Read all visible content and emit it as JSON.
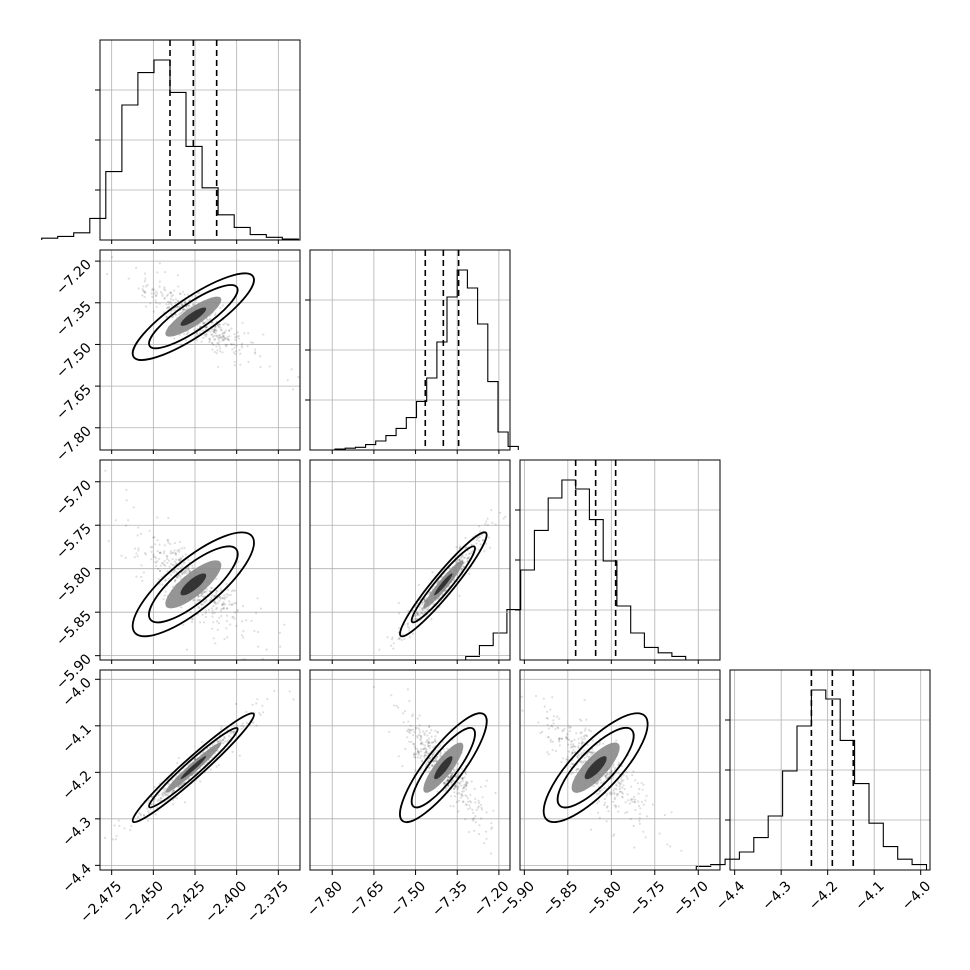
{
  "chart_data": {
    "type": "corner",
    "grid": true,
    "parameters": [
      {
        "index": 0,
        "range": [
          -2.482,
          -2.362
        ],
        "ticks": [
          "−2.475",
          "−2.450",
          "−2.425",
          "−2.400",
          "−2.375"
        ],
        "tick_values": [
          -2.475,
          -2.45,
          -2.425,
          -2.4,
          -2.375
        ],
        "median": -2.426,
        "q16": -2.44,
        "q84": -2.412,
        "sigma": 0.014
      },
      {
        "index": 1,
        "range": [
          -7.88,
          -7.16
        ],
        "ticks": [
          "−7.80",
          "−7.65",
          "−7.50",
          "−7.35",
          "−7.20"
        ],
        "tick_values": [
          -7.8,
          -7.65,
          -7.5,
          -7.35,
          -7.2
        ],
        "median": -7.4,
        "q16": -7.465,
        "q84": -7.345,
        "sigma": 0.06
      },
      {
        "index": 2,
        "range": [
          -5.905,
          -5.675
        ],
        "ticks": [
          "−5.90",
          "−5.85",
          "−5.80",
          "−5.75",
          "−5.70"
        ],
        "tick_values": [
          -5.9,
          -5.85,
          -5.8,
          -5.75,
          -5.7
        ],
        "median": -5.818,
        "q16": -5.841,
        "q84": -5.795,
        "sigma": 0.023
      },
      {
        "index": 3,
        "range": [
          -4.41,
          -3.98
        ],
        "ticks": [
          "−4.4",
          "−4.3",
          "−4.2",
          "−4.1",
          "−4.0"
        ],
        "tick_values": [
          -4.4,
          -4.3,
          -4.2,
          -4.1,
          -4.0
        ],
        "median": -4.19,
        "q16": -4.235,
        "q84": -4.145,
        "sigma": 0.045
      }
    ],
    "correlations": [
      [
        1,
        -0.85,
        -0.8,
        0.97
      ],
      [
        -0.85,
        1,
        0.95,
        -0.85
      ],
      [
        -0.8,
        0.95,
        1,
        -0.8
      ],
      [
        0.97,
        -0.85,
        -0.8,
        1
      ]
    ],
    "histograms": {
      "0": [
        0.01,
        0.02,
        0.04,
        0.12,
        0.38,
        0.75,
        0.93,
        1.0,
        0.82,
        0.52,
        0.29,
        0.14,
        0.07,
        0.03,
        0.015,
        0.005
      ],
      "1": [
        0.005,
        0.01,
        0.015,
        0.03,
        0.05,
        0.08,
        0.12,
        0.18,
        0.27,
        0.4,
        0.6,
        0.85,
        1.0,
        0.9,
        0.7,
        0.38,
        0.1,
        0.02
      ],
      "2": [
        0.02,
        0.08,
        0.15,
        0.28,
        0.5,
        0.72,
        0.9,
        1.0,
        0.95,
        0.78,
        0.55,
        0.3,
        0.15,
        0.07,
        0.04,
        0.02
      ],
      "3": [
        0.02,
        0.03,
        0.06,
        0.1,
        0.18,
        0.3,
        0.55,
        0.8,
        1.0,
        0.95,
        0.72,
        0.48,
        0.26,
        0.13,
        0.06,
        0.03
      ]
    }
  }
}
